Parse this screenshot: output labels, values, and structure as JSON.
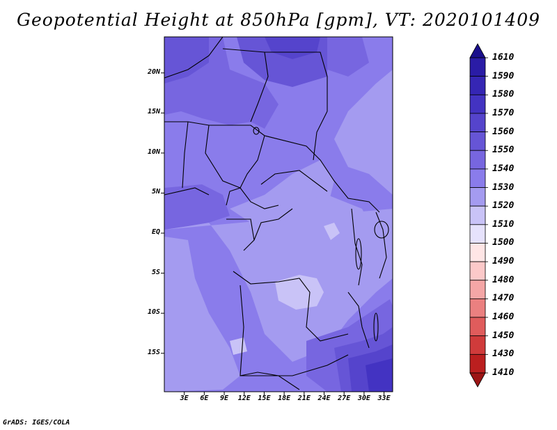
{
  "title": "Geopotential Height at 850hPa [gpm], VT: 2020101409",
  "footer": "GrADS: IGES/COLA",
  "map": {
    "variable": "Geopotential Height",
    "level": "850hPa",
    "units": "gpm",
    "valid_time": "2020101409",
    "region": "Central Africa"
  },
  "latitude_labels": [
    "20N",
    "15N",
    "10N",
    "5N",
    "EQ",
    "5S",
    "10S",
    "15S"
  ],
  "latitude_values": [
    20,
    15,
    10,
    5,
    0,
    -5,
    -10,
    -15
  ],
  "longitude_labels": [
    "3E",
    "6E",
    "9E",
    "12E",
    "15E",
    "18E",
    "21E",
    "24E",
    "27E",
    "30E",
    "33E"
  ],
  "longitude_values": [
    3,
    6,
    9,
    12,
    15,
    18,
    21,
    24,
    27,
    30,
    33
  ],
  "extent": {
    "lon_min": 0,
    "lon_max": 34.3,
    "lat_min": -19.8,
    "lat_max": 24.5
  },
  "colorbar": {
    "labels": [
      "1610",
      "1590",
      "1580",
      "1570",
      "1560",
      "1550",
      "1540",
      "1530",
      "1520",
      "1510",
      "1500",
      "1490",
      "1480",
      "1470",
      "1460",
      "1450",
      "1430",
      "1410"
    ],
    "colors": [
      "#1a0f8c",
      "#2a1ca6",
      "#3526b4",
      "#4333c2",
      "#5544cc",
      "#6655d6",
      "#7766e0",
      "#8a7ceb",
      "#a49bf0",
      "#c9c3f7",
      "#e6e2fc",
      "#ffe6e6",
      "#fcc9c9",
      "#f4a6a6",
      "#eb8080",
      "#e05c5c",
      "#d03b3b",
      "#bb1f1f",
      "#9c1414"
    ]
  },
  "field_colors": {
    "c1530": "#a49bf0",
    "c1540": "#8a7ceb",
    "c1550": "#7766e0",
    "c1560": "#6655d6",
    "c1570": "#5544cc",
    "c1580": "#4333c2",
    "c1520": "#c9c3f7",
    "border": "#000000"
  }
}
